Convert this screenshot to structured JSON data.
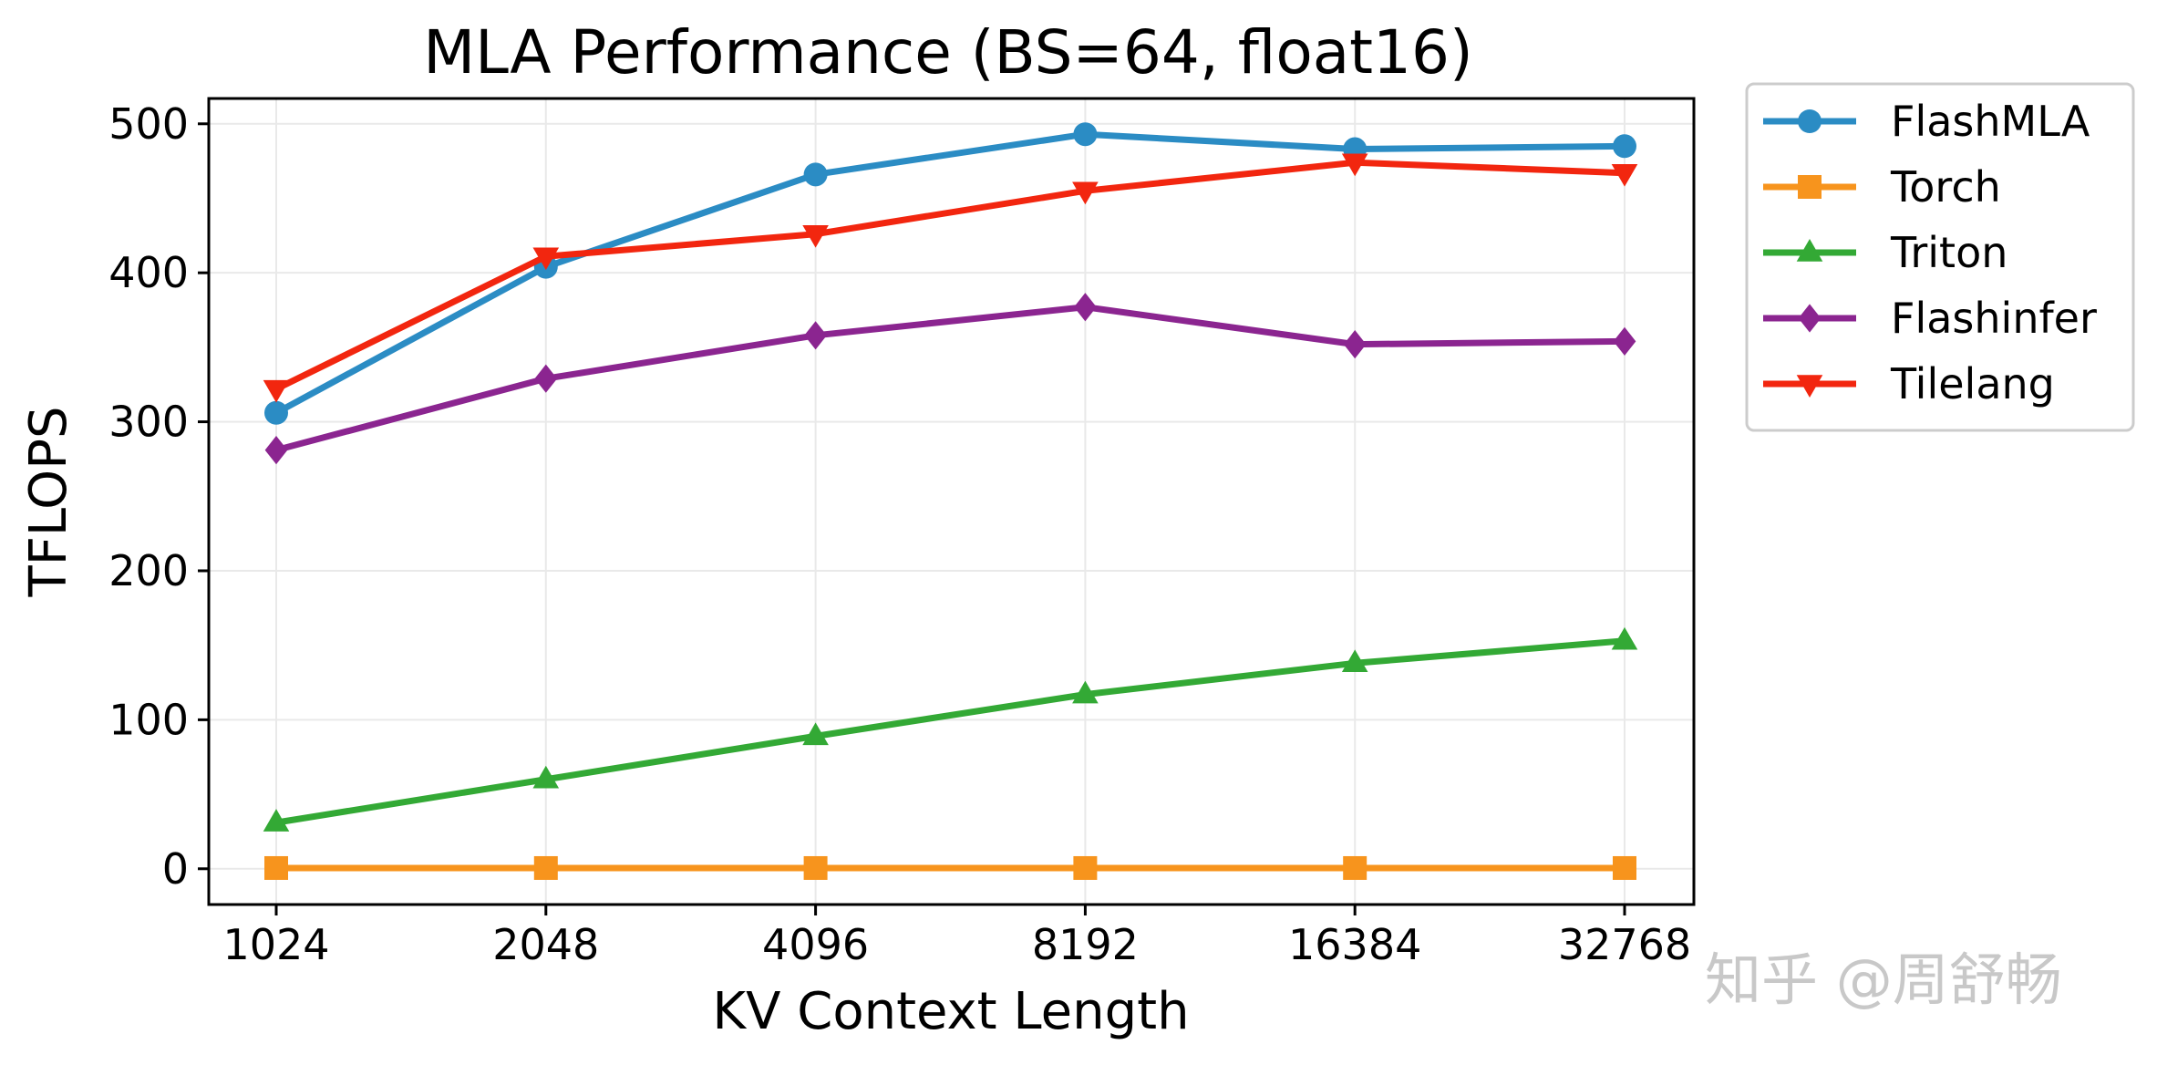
{
  "chart_data": {
    "type": "line",
    "title": "MLA Performance (BS=64, float16)",
    "xlabel": "KV Context Length",
    "ylabel": "TFLOPS",
    "categories": [
      "1024",
      "2048",
      "4096",
      "8192",
      "16384",
      "32768"
    ],
    "yticks": [
      0,
      100,
      200,
      300,
      400,
      500
    ],
    "ylim": [
      -24,
      517
    ],
    "grid": true,
    "legend_position": "outside-top-right",
    "series": [
      {
        "name": "FlashMLA",
        "color": "#2b8cc4",
        "marker": "circle",
        "values": [
          306,
          404,
          466,
          493,
          483,
          485
        ]
      },
      {
        "name": "Torch",
        "color": "#f7941d",
        "marker": "square",
        "values": [
          0.5,
          0.5,
          0.5,
          0.5,
          0.5,
          0.5
        ]
      },
      {
        "name": "Triton",
        "color": "#33a935",
        "marker": "triangle-up",
        "values": [
          31,
          60,
          89,
          117,
          138,
          153
        ]
      },
      {
        "name": "Flashinfer",
        "color": "#8b2590",
        "marker": "diamond",
        "values": [
          281,
          329,
          358,
          377,
          352,
          354
        ]
      },
      {
        "name": "Tilelang",
        "color": "#f2260f",
        "marker": "triangle-down",
        "values": [
          322,
          411,
          426,
          455,
          474,
          467
        ]
      }
    ]
  },
  "watermark": "知乎 @周舒畅"
}
